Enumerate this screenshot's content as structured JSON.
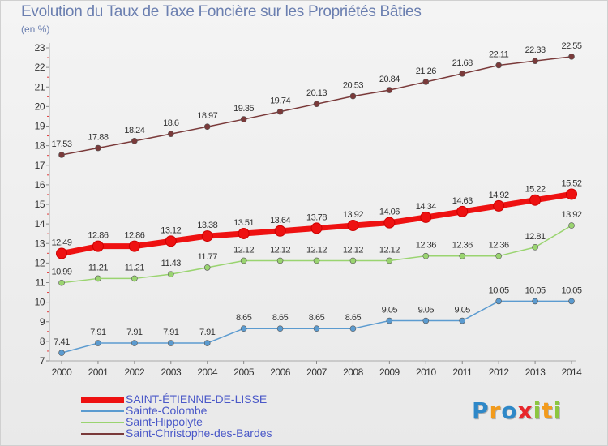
{
  "header": {
    "title": "Evolution du Taux de Taxe Foncière sur les Propriétés Bâties",
    "unit": "(en %)"
  },
  "logo": {
    "text": "Proxiti",
    "letters": [
      {
        "char": "P",
        "color": "#2e88c8"
      },
      {
        "char": "r",
        "color": "#f29b1c"
      },
      {
        "char": "o",
        "color": "#2e88c8"
      },
      {
        "char": "x",
        "color": "#e8262b"
      },
      {
        "char": "i",
        "color": "#8cc63f"
      },
      {
        "char": "t",
        "color": "#f29b1c"
      },
      {
        "char": "i",
        "color": "#8cc63f"
      }
    ]
  },
  "chart_data": {
    "type": "line",
    "title": "Evolution du Taux de Taxe Foncière sur les Propriétés Bâties",
    "ylabel": "(en %)",
    "x": [
      "2000",
      "2001",
      "2002",
      "2003",
      "2004",
      "2005",
      "2006",
      "2007",
      "2008",
      "2009",
      "2010",
      "2011",
      "2012",
      "2013",
      "2014"
    ],
    "ylim": [
      7,
      23
    ],
    "yticks": [
      "7",
      "8",
      "9",
      "10",
      "11",
      "12",
      "13",
      "14",
      "15",
      "16",
      "17",
      "18",
      "19",
      "20",
      "21",
      "22",
      "23"
    ],
    "grid": false,
    "legend_position": "bottom-left",
    "series": [
      {
        "name": "SAINT-ÉTIENNE-DE-LISSE",
        "color": "#ee1111",
        "emphasis": true,
        "values": [
          12.49,
          12.86,
          12.86,
          13.12,
          13.38,
          13.51,
          13.64,
          13.78,
          13.92,
          14.06,
          14.34,
          14.63,
          14.92,
          15.22,
          15.52
        ],
        "labels": [
          "12.49",
          "12.86",
          "12.86",
          "13.12",
          "13.38",
          "13.51",
          "13.64",
          "13.78",
          "13.92",
          "14.06",
          "14.34",
          "14.63",
          "14.92",
          "15.22",
          "15.52"
        ]
      },
      {
        "name": "Sainte-Colombe",
        "color": "#5b9bd0",
        "emphasis": false,
        "values": [
          7.41,
          7.91,
          7.91,
          7.91,
          7.91,
          8.65,
          8.65,
          8.65,
          8.65,
          9.05,
          9.05,
          9.05,
          10.05,
          10.05,
          10.05
        ],
        "labels": [
          "7.41",
          "7.91",
          "7.91",
          "7.91",
          "7.91",
          "8.65",
          "8.65",
          "8.65",
          "8.65",
          "9.05",
          "9.05",
          "9.05",
          "10.05",
          "10.05",
          "10.05"
        ]
      },
      {
        "name": "Saint-Hippolyte",
        "color": "#9ad470",
        "emphasis": false,
        "values": [
          10.99,
          11.21,
          11.21,
          11.43,
          11.77,
          12.12,
          12.12,
          12.12,
          12.12,
          12.12,
          12.36,
          12.36,
          12.36,
          12.81,
          13.92
        ],
        "labels": [
          "10.99",
          "11.21",
          "11.21",
          "11.43",
          "11.77",
          "12.12",
          "12.12",
          "12.12",
          "12.12",
          "12.12",
          "12.36",
          "12.36",
          "12.36",
          "12.81",
          "13.92"
        ]
      },
      {
        "name": "Saint-Christophe-des-Bardes",
        "color": "#7a3a3a",
        "emphasis": false,
        "values": [
          17.53,
          17.88,
          18.24,
          18.6,
          18.97,
          19.35,
          19.74,
          20.13,
          20.53,
          20.84,
          21.26,
          21.68,
          22.11,
          22.33,
          22.55
        ],
        "labels": [
          "17.53",
          "17.88",
          "18.24",
          "18.6",
          "18.97",
          "19.35",
          "19.74",
          "20.13",
          "20.53",
          "20.84",
          "21.26",
          "21.68",
          "22.11",
          "22.33",
          "22.55"
        ]
      }
    ]
  }
}
